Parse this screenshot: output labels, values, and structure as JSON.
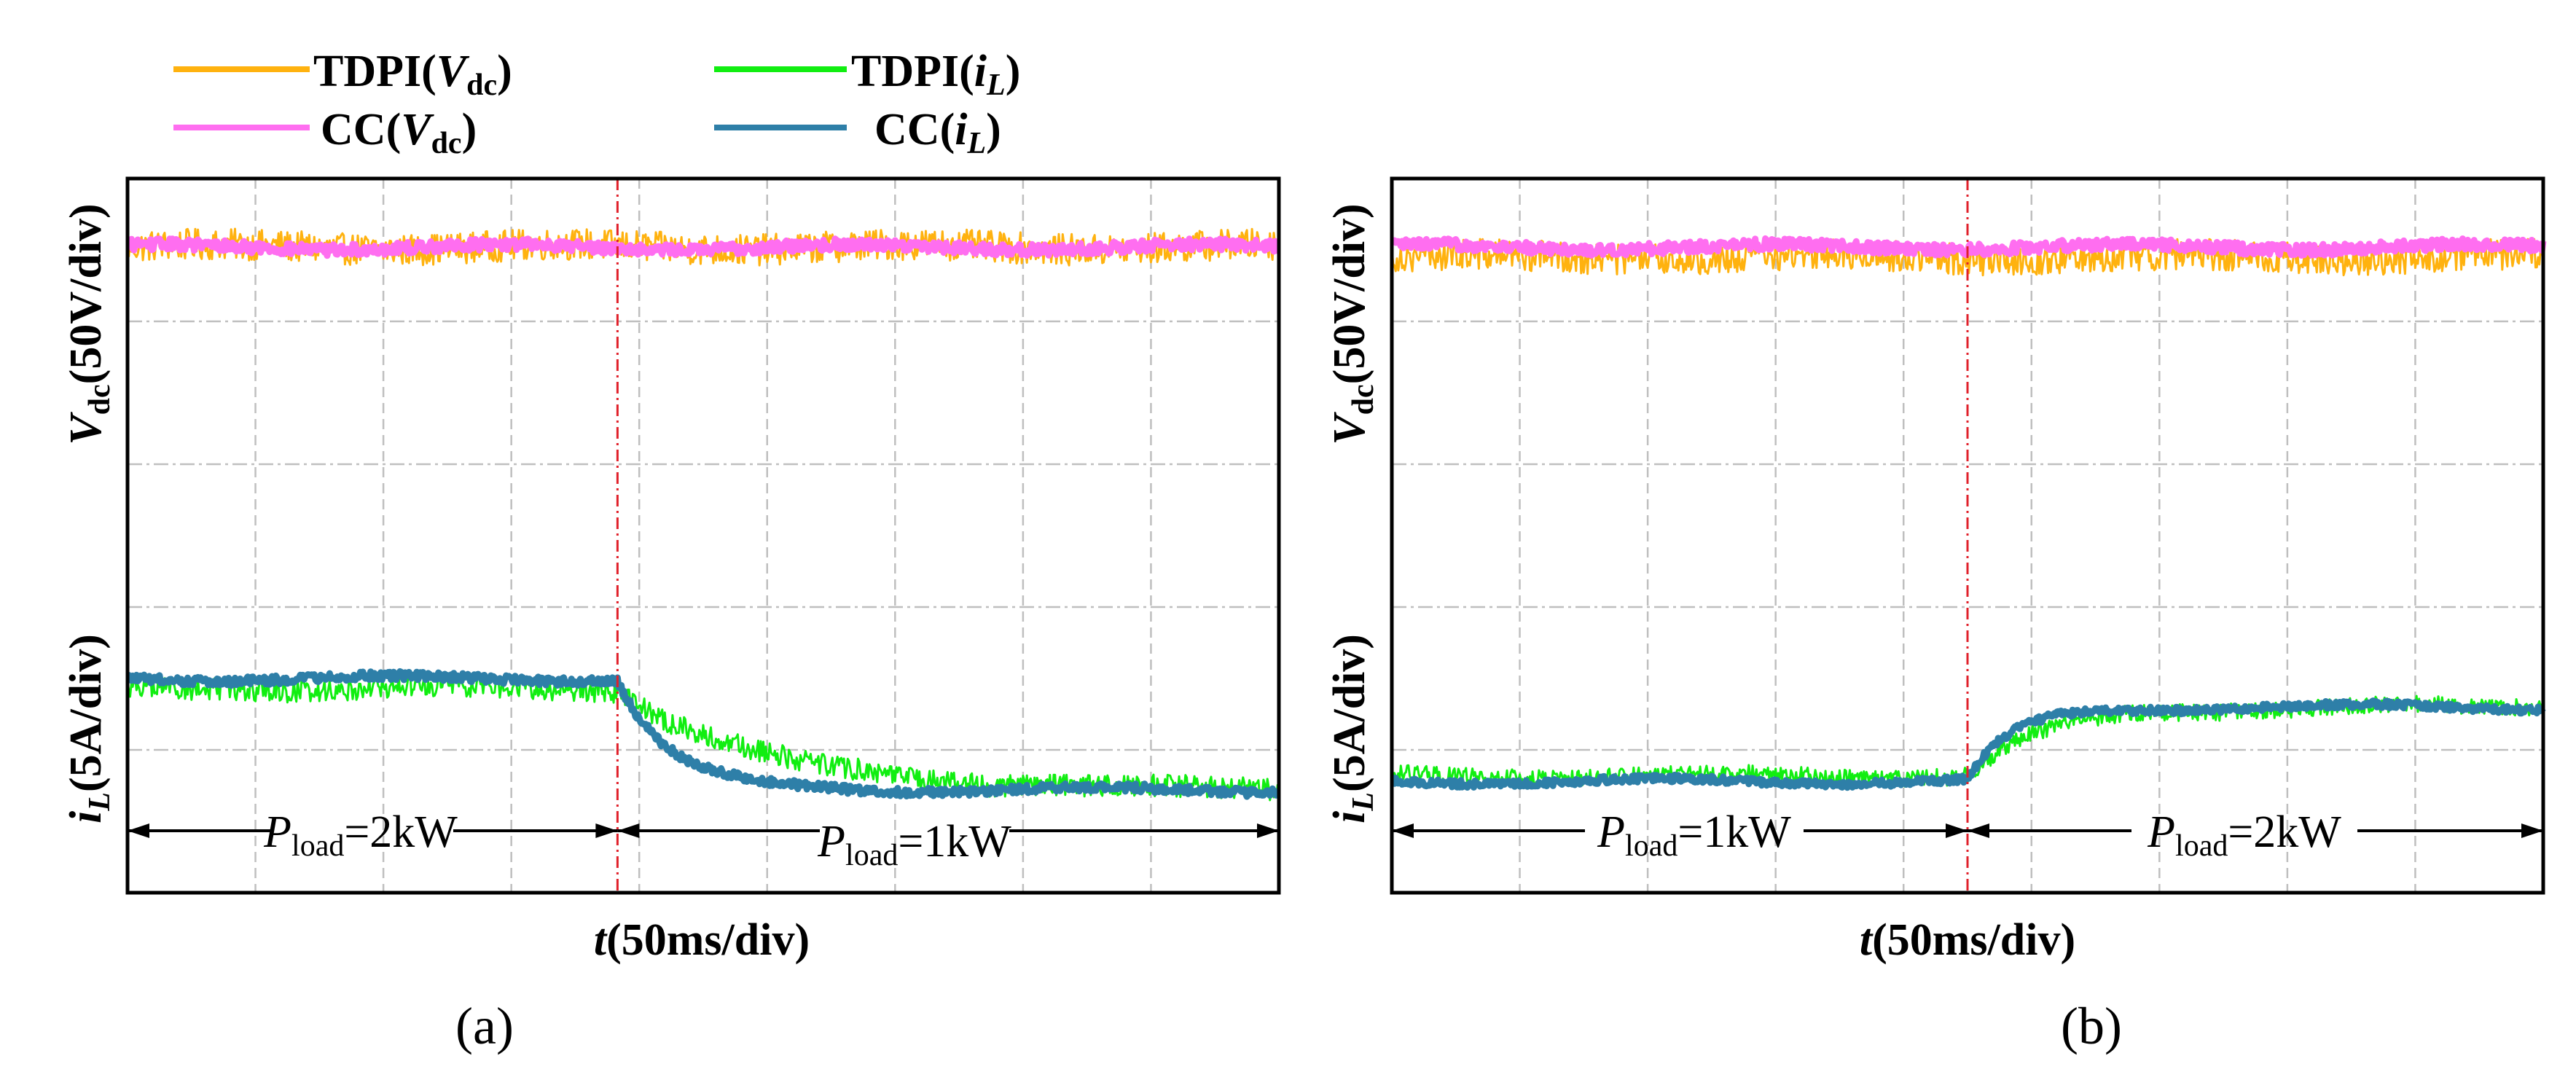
{
  "legend": {
    "items": [
      {
        "name": "TDPI",
        "signal": "V",
        "subscript": "dc",
        "color": "#FFB20F"
      },
      {
        "name": "TDPI",
        "signal": "i",
        "subscript": "L",
        "color": "#11EE11"
      },
      {
        "name": "CC",
        "signal": "V",
        "subscript": "dc",
        "color": "#FF6EF0"
      },
      {
        "name": "CC",
        "signal": "i",
        "subscript": "L",
        "color": "#2E7FA8"
      }
    ]
  },
  "colors": {
    "tdpi_vdc": "#FFB20F",
    "cc_vdc": "#FF6EF0",
    "tdpi_il": "#11EE11",
    "cc_il": "#2E7FA8",
    "frame": "#000000",
    "grid": "#BFBFBF",
    "event_line": "#E0202A"
  },
  "chart_data": [
    {
      "type": "line",
      "panel_label": "(a)",
      "xlabel": {
        "italic": "t",
        "rest": "(50ms/div)"
      },
      "ylabel_vdc": {
        "italic": "V",
        "subscript": "dc",
        "rest": "(50V/div)"
      },
      "ylabel_il": {
        "italic": "i",
        "subscript": "L",
        "rest": "(5A/div)"
      },
      "x_divisions": 9,
      "y_divisions": 5,
      "xlim_div": [
        0,
        9
      ],
      "ylim_div": [
        0,
        5
      ],
      "step_time_div": 3.83,
      "annotations": {
        "before": {
          "italic": "P",
          "subscript": "load",
          "rest": "=2kW"
        },
        "after": {
          "italic": "P",
          "subscript": "load",
          "rest": "=1kW"
        }
      },
      "series": [
        {
          "name": "TDPI(Vdc)",
          "color": "#FFB20F",
          "level_before": 4.52,
          "level_after": 4.52,
          "noise": 0.11,
          "tau": 0.3
        },
        {
          "name": "CC(Vdc)",
          "color": "#FF6EF0",
          "level_before": 4.52,
          "level_after": 4.52,
          "noise": 0.04,
          "tau": 0.3
        },
        {
          "name": "TDPI(iL)",
          "color": "#11EE11",
          "level_before": 1.43,
          "level_after": 0.72,
          "noise": 0.08,
          "tau": 1.1
        },
        {
          "name": "CC(iL)",
          "color": "#2E7FA8",
          "level_before": 1.5,
          "level_after": 0.72,
          "noise": 0.03,
          "tau": 0.4
        }
      ]
    },
    {
      "type": "line",
      "panel_label": "(b)",
      "xlabel": {
        "italic": "t",
        "rest": "(50ms/div)"
      },
      "ylabel_vdc": {
        "italic": "V",
        "subscript": "dc",
        "rest": "(50V/div)"
      },
      "ylabel_il": {
        "italic": "i",
        "subscript": "L",
        "rest": "(5A/div)"
      },
      "x_divisions": 9,
      "y_divisions": 5,
      "xlim_div": [
        0,
        9
      ],
      "ylim_div": [
        0,
        5
      ],
      "step_time_div": 4.5,
      "annotations": {
        "before": {
          "italic": "P",
          "subscript": "load",
          "rest": "=1kW"
        },
        "after": {
          "italic": "P",
          "subscript": "load",
          "rest": "=2kW"
        }
      },
      "series": [
        {
          "name": "TDPI(Vdc)",
          "color": "#FFB20F",
          "level_before": 4.45,
          "level_after": 4.45,
          "noise": 0.11,
          "tau": 0.3
        },
        {
          "name": "CC(Vdc)",
          "color": "#FF6EF0",
          "level_before": 4.52,
          "level_after": 4.52,
          "noise": 0.04,
          "tau": 0.3
        },
        {
          "name": "TDPI(iL)",
          "color": "#11EE11",
          "level_before": 0.82,
          "level_after": 1.3,
          "noise": 0.06,
          "tau": 0.6
        },
        {
          "name": "CC(iL)",
          "color": "#2E7FA8",
          "level_before": 0.78,
          "level_after": 1.3,
          "noise": 0.025,
          "tau": 0.35
        }
      ]
    }
  ]
}
